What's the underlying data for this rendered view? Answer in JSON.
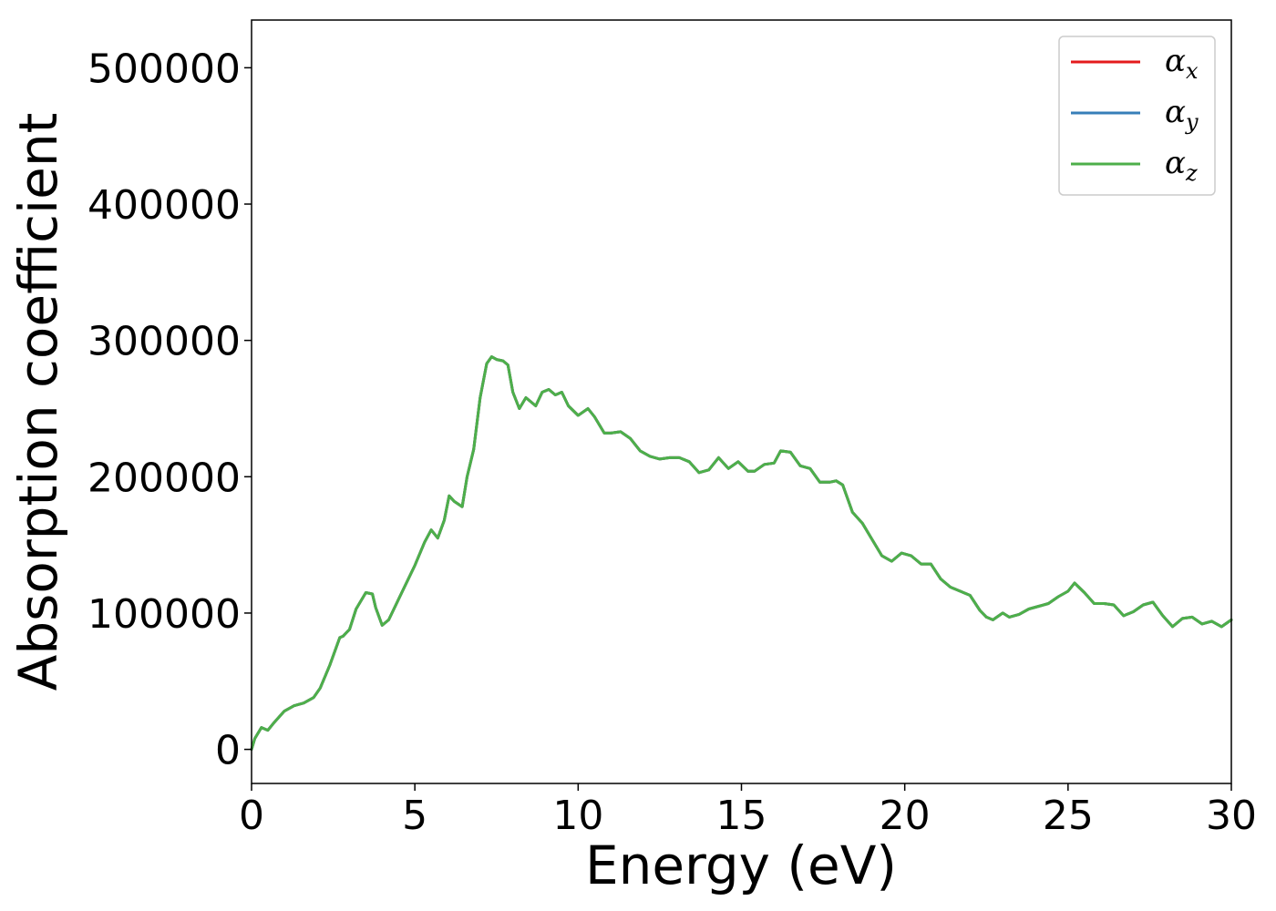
{
  "chart_data": {
    "type": "line",
    "xlabel": "Energy (eV)",
    "ylabel": "Absorption coefficient",
    "xlim": [
      0,
      30
    ],
    "ylim": [
      -25000,
      535000
    ],
    "xticks": [
      0,
      5,
      10,
      15,
      20,
      25,
      30
    ],
    "yticks": [
      0,
      100000,
      200000,
      300000,
      400000,
      500000
    ],
    "grid": false,
    "legend_position": "top-right",
    "x": [
      0,
      0.1,
      0.3,
      0.5,
      0.7,
      1.0,
      1.3,
      1.6,
      1.9,
      2.1,
      2.4,
      2.7,
      2.8,
      3.0,
      3.2,
      3.5,
      3.7,
      3.8,
      4.0,
      4.2,
      4.6,
      5.0,
      5.3,
      5.5,
      5.7,
      5.9,
      6.05,
      6.2,
      6.45,
      6.6,
      6.8,
      7.0,
      7.2,
      7.35,
      7.5,
      7.7,
      7.85,
      8.0,
      8.2,
      8.4,
      8.5,
      8.7,
      8.9,
      9.1,
      9.3,
      9.5,
      9.7,
      10.0,
      10.3,
      10.5,
      10.8,
      11.0,
      11.3,
      11.6,
      11.9,
      12.2,
      12.5,
      12.8,
      13.1,
      13.4,
      13.7,
      14.0,
      14.3,
      14.6,
      14.9,
      15.2,
      15.4,
      15.7,
      16.0,
      16.2,
      16.5,
      16.8,
      17.1,
      17.4,
      17.7,
      17.9,
      18.1,
      18.4,
      18.7,
      19.0,
      19.3,
      19.6,
      19.9,
      20.2,
      20.5,
      20.8,
      21.1,
      21.4,
      21.7,
      22.0,
      22.3,
      22.5,
      22.7,
      23.0,
      23.2,
      23.5,
      23.8,
      24.1,
      24.4,
      24.7,
      25.0,
      25.2,
      25.5,
      25.8,
      26.1,
      26.4,
      26.7,
      27.0,
      27.3,
      27.6,
      27.9,
      28.2,
      28.5,
      28.8,
      29.1,
      29.4,
      29.7,
      30.0
    ],
    "series": [
      {
        "name": "α",
        "subscript": "x",
        "color": "#e41a1c",
        "y": [
          0,
          8000,
          16000,
          14000,
          20000,
          28000,
          32000,
          34000,
          38000,
          45000,
          62000,
          82000,
          83000,
          88000,
          103000,
          115000,
          114000,
          104000,
          91000,
          95000,
          115000,
          135000,
          152000,
          161000,
          155000,
          168000,
          186000,
          182000,
          178000,
          200000,
          220000,
          258000,
          283000,
          288000,
          286000,
          285000,
          282000,
          262000,
          250000,
          258000,
          256000,
          252000,
          262000,
          264000,
          260000,
          262000,
          252000,
          245000,
          250000,
          244000,
          232000,
          232000,
          233000,
          228000,
          219000,
          215000,
          213000,
          214000,
          214000,
          211000,
          203000,
          205000,
          214000,
          206000,
          211000,
          204000,
          204000,
          209000,
          210000,
          219000,
          218000,
          208000,
          206000,
          196000,
          196000,
          197000,
          194000,
          174000,
          166000,
          154000,
          142000,
          138000,
          144000,
          142000,
          136000,
          136000,
          125000,
          119000,
          116000,
          113000,
          102000,
          97000,
          95000,
          100000,
          97000,
          99000,
          103000,
          105000,
          107000,
          112000,
          116000,
          122000,
          115000,
          107000,
          107000,
          106000,
          98000,
          101000,
          106000,
          108000,
          98000,
          90000,
          96000,
          97000,
          92000,
          94000,
          90000,
          95000
        ]
      },
      {
        "name": "α",
        "subscript": "y",
        "color": "#377eb8",
        "y": [
          0,
          8000,
          16000,
          14000,
          20000,
          28000,
          32000,
          34000,
          38000,
          45000,
          62000,
          82000,
          83000,
          88000,
          103000,
          115000,
          114000,
          104000,
          91000,
          95000,
          115000,
          135000,
          152000,
          161000,
          155000,
          168000,
          186000,
          182000,
          178000,
          200000,
          220000,
          258000,
          283000,
          288000,
          286000,
          285000,
          282000,
          262000,
          250000,
          258000,
          256000,
          252000,
          262000,
          264000,
          260000,
          262000,
          252000,
          245000,
          250000,
          244000,
          232000,
          232000,
          233000,
          228000,
          219000,
          215000,
          213000,
          214000,
          214000,
          211000,
          203000,
          205000,
          214000,
          206000,
          211000,
          204000,
          204000,
          209000,
          210000,
          219000,
          218000,
          208000,
          206000,
          196000,
          196000,
          197000,
          194000,
          174000,
          166000,
          154000,
          142000,
          138000,
          144000,
          142000,
          136000,
          136000,
          125000,
          119000,
          116000,
          113000,
          102000,
          97000,
          95000,
          100000,
          97000,
          99000,
          103000,
          105000,
          107000,
          112000,
          116000,
          122000,
          115000,
          107000,
          107000,
          106000,
          98000,
          101000,
          106000,
          108000,
          98000,
          90000,
          96000,
          97000,
          92000,
          94000,
          90000,
          95000
        ]
      },
      {
        "name": "α",
        "subscript": "z",
        "color": "#4daf4a",
        "y": [
          0,
          8000,
          16000,
          14000,
          20000,
          28000,
          32000,
          34000,
          38000,
          45000,
          62000,
          82000,
          83000,
          88000,
          103000,
          115000,
          114000,
          104000,
          91000,
          95000,
          115000,
          135000,
          152000,
          161000,
          155000,
          168000,
          186000,
          182000,
          178000,
          200000,
          220000,
          258000,
          283000,
          288000,
          286000,
          285000,
          282000,
          262000,
          250000,
          258000,
          256000,
          252000,
          262000,
          264000,
          260000,
          262000,
          252000,
          245000,
          250000,
          244000,
          232000,
          232000,
          233000,
          228000,
          219000,
          215000,
          213000,
          214000,
          214000,
          211000,
          203000,
          205000,
          214000,
          206000,
          211000,
          204000,
          204000,
          209000,
          210000,
          219000,
          218000,
          208000,
          206000,
          196000,
          196000,
          197000,
          194000,
          174000,
          166000,
          154000,
          142000,
          138000,
          144000,
          142000,
          136000,
          136000,
          125000,
          119000,
          116000,
          113000,
          102000,
          97000,
          95000,
          100000,
          97000,
          99000,
          103000,
          105000,
          107000,
          112000,
          116000,
          122000,
          115000,
          107000,
          107000,
          106000,
          98000,
          101000,
          106000,
          108000,
          98000,
          90000,
          96000,
          97000,
          92000,
          94000,
          90000,
          95000
        ]
      }
    ]
  }
}
